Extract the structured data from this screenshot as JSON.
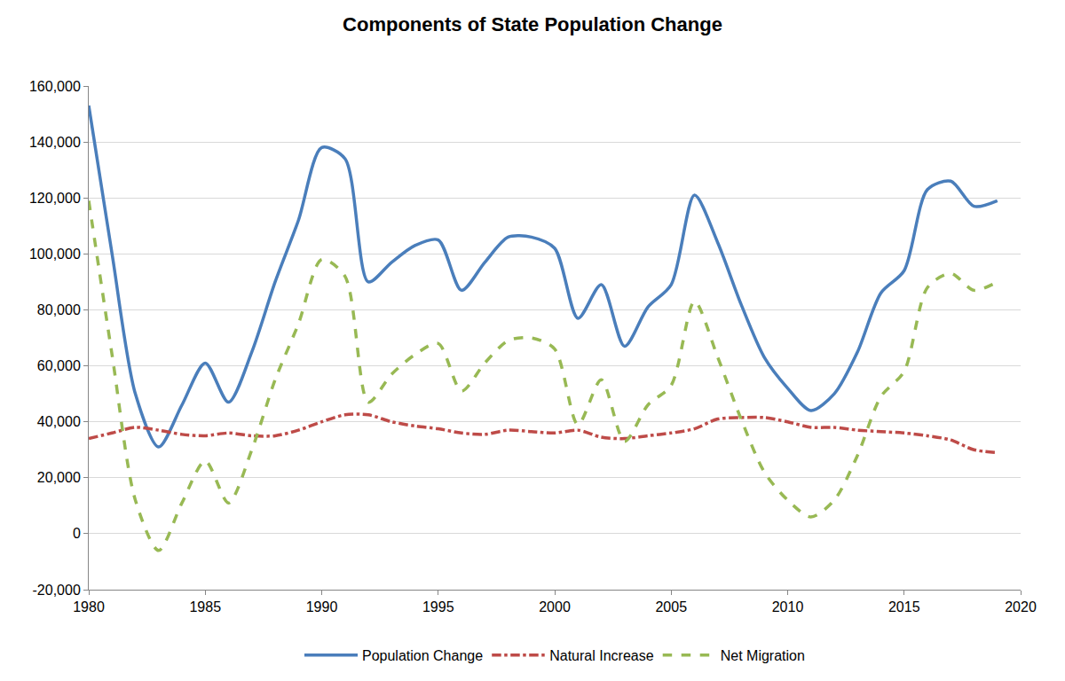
{
  "chart_data": {
    "type": "line",
    "title": "Components of State Population Change",
    "x": [
      1980,
      1981,
      1982,
      1983,
      1984,
      1985,
      1986,
      1987,
      1988,
      1989,
      1990,
      1991,
      1992,
      1993,
      1994,
      1995,
      1996,
      1997,
      1998,
      1999,
      2000,
      2001,
      2002,
      2003,
      2004,
      2005,
      2006,
      2007,
      2008,
      2009,
      2010,
      2011,
      2012,
      2013,
      2014,
      2015,
      2016,
      2017,
      2018,
      2019
    ],
    "series": [
      {
        "name": "Population Change",
        "color": "#4a7ebb",
        "line_style": "solid",
        "values": [
          153000,
          100000,
          50000,
          31000,
          46000,
          61000,
          47000,
          65000,
          90000,
          112000,
          138000,
          134000,
          90000,
          97000,
          103000,
          105000,
          87000,
          97000,
          106000,
          106000,
          102000,
          77000,
          89000,
          67000,
          81000,
          89000,
          121000,
          104000,
          82000,
          63000,
          52000,
          44000,
          50000,
          65000,
          86000,
          94000,
          123000,
          126000,
          117000,
          119000
        ]
      },
      {
        "name": "Natural Increase",
        "color": "#be4b48",
        "line_style": "dashdot",
        "values": [
          34000,
          36000,
          38000,
          37000,
          35500,
          35000,
          36000,
          35000,
          35000,
          37000,
          40000,
          42500,
          42500,
          40000,
          38500,
          37500,
          36000,
          35500,
          37000,
          36500,
          36000,
          37000,
          34500,
          34000,
          35000,
          36000,
          37500,
          41000,
          41500,
          41500,
          40000,
          38000,
          38000,
          37000,
          36500,
          36000,
          35000,
          33500,
          30000,
          29000
        ]
      },
      {
        "name": "Net Migration",
        "color": "#98b954",
        "line_style": "dash",
        "values": [
          119000,
          64000,
          12000,
          -6000,
          11000,
          26000,
          11000,
          30000,
          55000,
          75000,
          98000,
          92000,
          47000,
          57000,
          64000,
          68000,
          51000,
          61000,
          69000,
          70000,
          66000,
          39000,
          55000,
          33000,
          46000,
          53000,
          83000,
          63000,
          41000,
          22000,
          12000,
          6000,
          12000,
          28000,
          49000,
          58000,
          88000,
          93000,
          87000,
          90000
        ]
      }
    ],
    "xlim": [
      1980,
      2020
    ],
    "xticks": [
      1980,
      1985,
      1990,
      1995,
      2000,
      2005,
      2010,
      2015,
      2020
    ],
    "ylim": [
      -20000,
      160000
    ],
    "yticks": [
      {
        "value": -20000,
        "label": "-20,000"
      },
      0,
      {
        "value": 20000,
        "label": "20,000"
      },
      {
        "value": 40000,
        "label": "40,000"
      },
      {
        "value": 60000,
        "label": "60,000"
      },
      {
        "value": 80000,
        "label": "80,000"
      },
      {
        "value": 100000,
        "label": "100,000"
      },
      {
        "value": 120000,
        "label": "120,000"
      },
      {
        "value": 140000,
        "label": "140,000"
      },
      {
        "value": 160000,
        "label": "160,000"
      }
    ],
    "grid": true,
    "legend": "bottom"
  }
}
